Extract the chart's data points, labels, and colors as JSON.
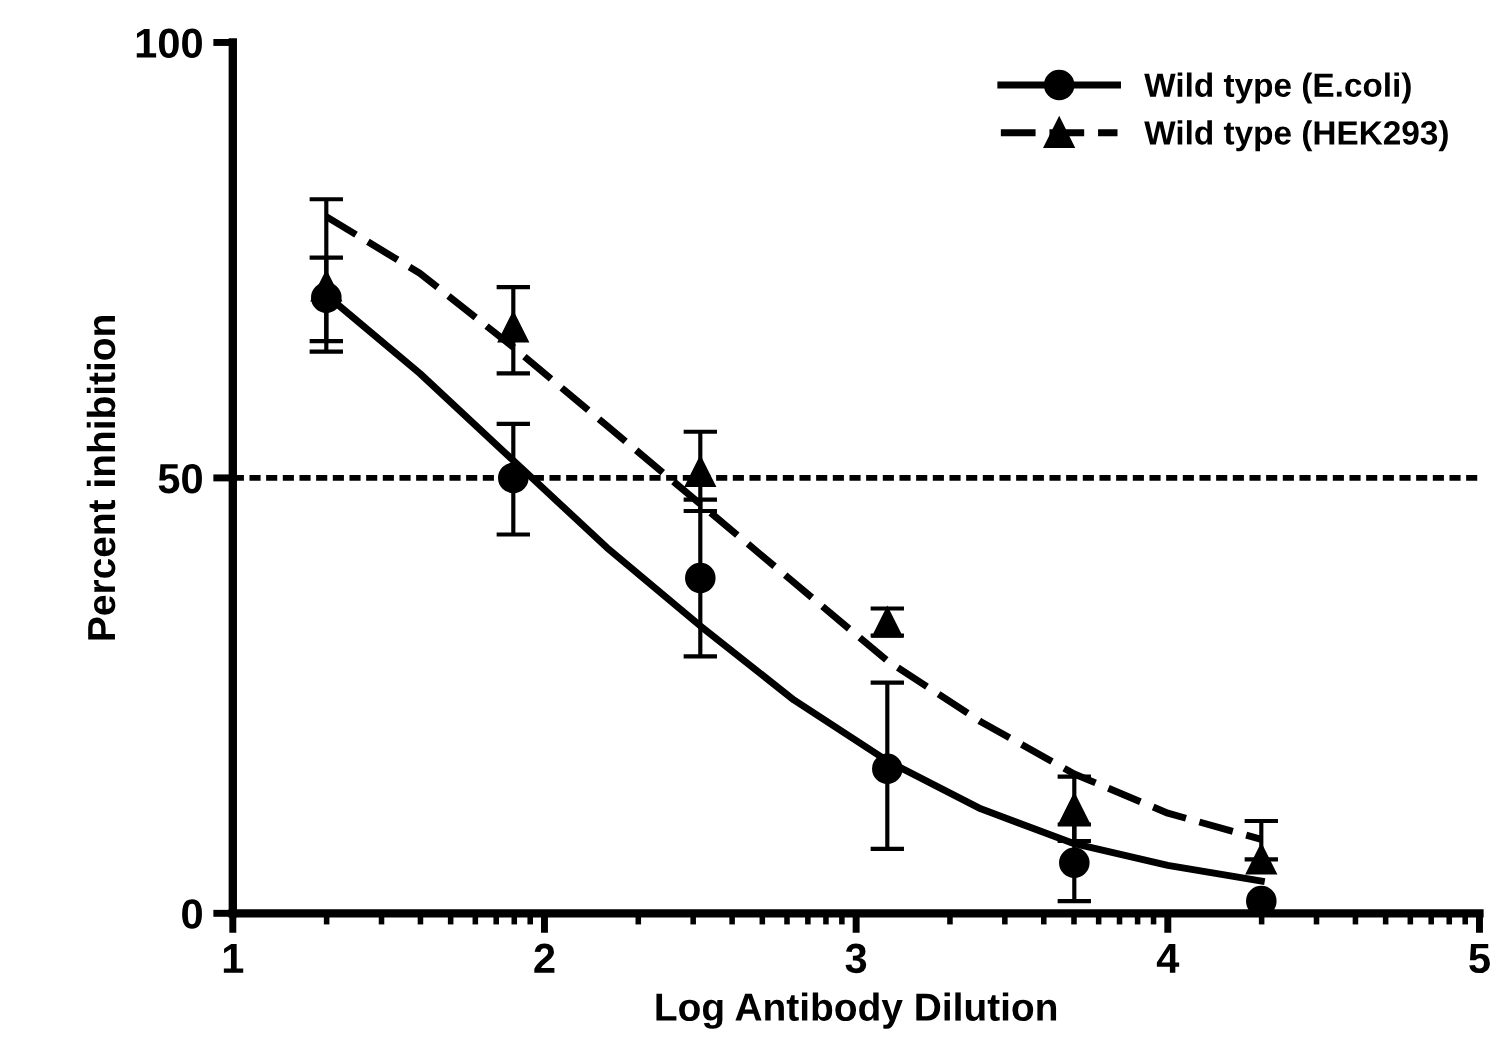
{
  "chart_data": {
    "type": "scatter",
    "xlabel": "Log Antibody Dilution",
    "ylabel": "Percent inhibition",
    "xlim": [
      1,
      5
    ],
    "xticks": [
      1,
      2,
      3,
      4,
      5
    ],
    "ylim": [
      0,
      100
    ],
    "yticks": [
      0,
      50,
      100
    ],
    "grid": false,
    "legend": "top right",
    "ref_lines": [
      {
        "axis": "y",
        "value": 50,
        "color": "#000000",
        "line_style": "dotted"
      }
    ],
    "series": [
      {
        "name": "Wild type (E.coli)",
        "marker": "circle",
        "color": "#000000",
        "x": [
          1.3,
          1.9,
          2.5,
          3.1,
          3.7,
          4.3
        ],
        "values": [
          70.7,
          50,
          38.5,
          16.6,
          5.8,
          1.4
        ],
        "errors": [
          [
            65.7,
            75.3
          ],
          [
            43.5,
            56.2
          ],
          [
            29.5,
            47.5
          ],
          [
            7.4,
            26.5
          ],
          [
            1.4,
            10.2
          ],
          null
        ]
      },
      {
        "name": "Wild type (HEK293)",
        "marker": "triangle",
        "color": "#000000",
        "x": [
          1.3,
          1.9,
          2.5,
          3.1,
          3.7,
          4.3
        ],
        "values": [
          72,
          67.3,
          50.7,
          33.4,
          12,
          6.2
        ],
        "errors": [
          [
            64.5,
            82
          ],
          [
            62,
            71.9
          ],
          [
            46.2,
            55.3
          ],
          [
            31.9,
            35
          ],
          [
            8.3,
            15.7
          ],
          [
            6.2,
            10.6
          ]
        ]
      },
      {
        "type": "line",
        "line_style": "solid",
        "color": "#000000",
        "x": [
          1.3,
          1.6,
          1.9,
          2.2,
          2.5,
          2.8,
          3.1,
          3.4,
          3.7,
          4.0,
          4.3
        ],
        "values": [
          71,
          62,
          52,
          42,
          33,
          24.5,
          17.5,
          12,
          8,
          5.5,
          3.7
        ]
      },
      {
        "type": "line",
        "line_style": "dashed",
        "color": "#000000",
        "x": [
          1.3,
          1.6,
          1.9,
          2.2,
          2.5,
          2.8,
          3.1,
          3.4,
          3.7,
          4.0,
          4.3
        ],
        "values": [
          80,
          73.5,
          65,
          56,
          47,
          38,
          29,
          22,
          16,
          11.5,
          8.5
        ]
      }
    ]
  }
}
